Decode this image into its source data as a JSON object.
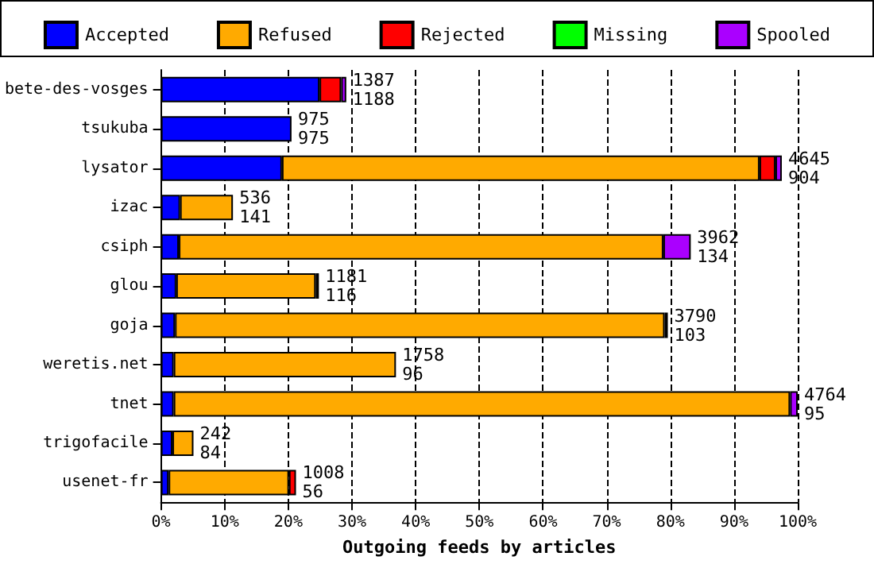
{
  "chart_data": {
    "type": "bar",
    "orientation": "horizontal",
    "stacked": true,
    "xlabel": "Outgoing feeds by articles",
    "categories": [
      "bete-des-vosges",
      "tsukuba",
      "lysator",
      "izac",
      "csiph",
      "glou",
      "goja",
      "weretis.net",
      "tnet",
      "trigofacile",
      "usenet-fr"
    ],
    "series": [
      {
        "name": "Accepted",
        "color": "#0000ff",
        "values": [
          24.9,
          20.5,
          19.0,
          3.0,
          2.8,
          2.4,
          2.2,
          2.0,
          2.0,
          1.8,
          1.2
        ]
      },
      {
        "name": "Refused",
        "color": "#ffaa00",
        "values": [
          null,
          null,
          75.0,
          8.3,
          76.1,
          21.9,
          76.9,
          34.9,
          96.8,
          3.3,
          18.9
        ]
      },
      {
        "name": "Rejected",
        "color": "#ff0000",
        "values": [
          3.4,
          null,
          2.5,
          null,
          null,
          0.5,
          0.5,
          null,
          null,
          null,
          1.1
        ]
      },
      {
        "name": "Missing",
        "color": "#00ff00",
        "values": [
          null,
          null,
          null,
          null,
          null,
          null,
          null,
          null,
          null,
          null,
          null
        ]
      },
      {
        "name": "Spooled",
        "color": "#aa00ff",
        "values": [
          0.8,
          null,
          1.0,
          null,
          4.3,
          null,
          null,
          null,
          1.2,
          null,
          null
        ]
      }
    ],
    "xlim": [
      0,
      100
    ],
    "xticks": [
      {
        "value": 0,
        "label": "0%"
      },
      {
        "value": 10,
        "label": "10%"
      },
      {
        "value": 20,
        "label": "20%"
      },
      {
        "value": 30,
        "label": "30%"
      },
      {
        "value": 40,
        "label": "40%"
      },
      {
        "value": 50,
        "label": "50%"
      },
      {
        "value": 60,
        "label": "60%"
      },
      {
        "value": 70,
        "label": "70%"
      },
      {
        "value": 80,
        "label": "80%"
      },
      {
        "value": 90,
        "label": "90%"
      },
      {
        "value": 100,
        "label": "100%"
      }
    ],
    "annotations": [
      {
        "text": "1387\n1188",
        "x": 29.1,
        "y": "bete-des-vosges"
      },
      {
        "text": "975\n975",
        "x": 20.5,
        "y": "tsukuba"
      },
      {
        "text": "4645\n904",
        "x": 97.5,
        "y": "lysator"
      },
      {
        "text": "536\n141",
        "x": 11.3,
        "y": "izac"
      },
      {
        "text": "3962\n134",
        "x": 83.2,
        "y": "csiph"
      },
      {
        "text": "1181\n116",
        "x": 24.8,
        "y": "glou"
      },
      {
        "text": "3790\n103",
        "x": 79.6,
        "y": "goja"
      },
      {
        "text": "1758\n96",
        "x": 36.9,
        "y": "weretis.net"
      },
      {
        "text": "4764\n95",
        "x": 100,
        "y": "tnet"
      },
      {
        "text": "242\n84",
        "x": 5.1,
        "y": "trigofacile"
      },
      {
        "text": "1008\n56",
        "x": 21.2,
        "y": "usenet-fr"
      }
    ],
    "grid": "x",
    "legend": "top"
  }
}
